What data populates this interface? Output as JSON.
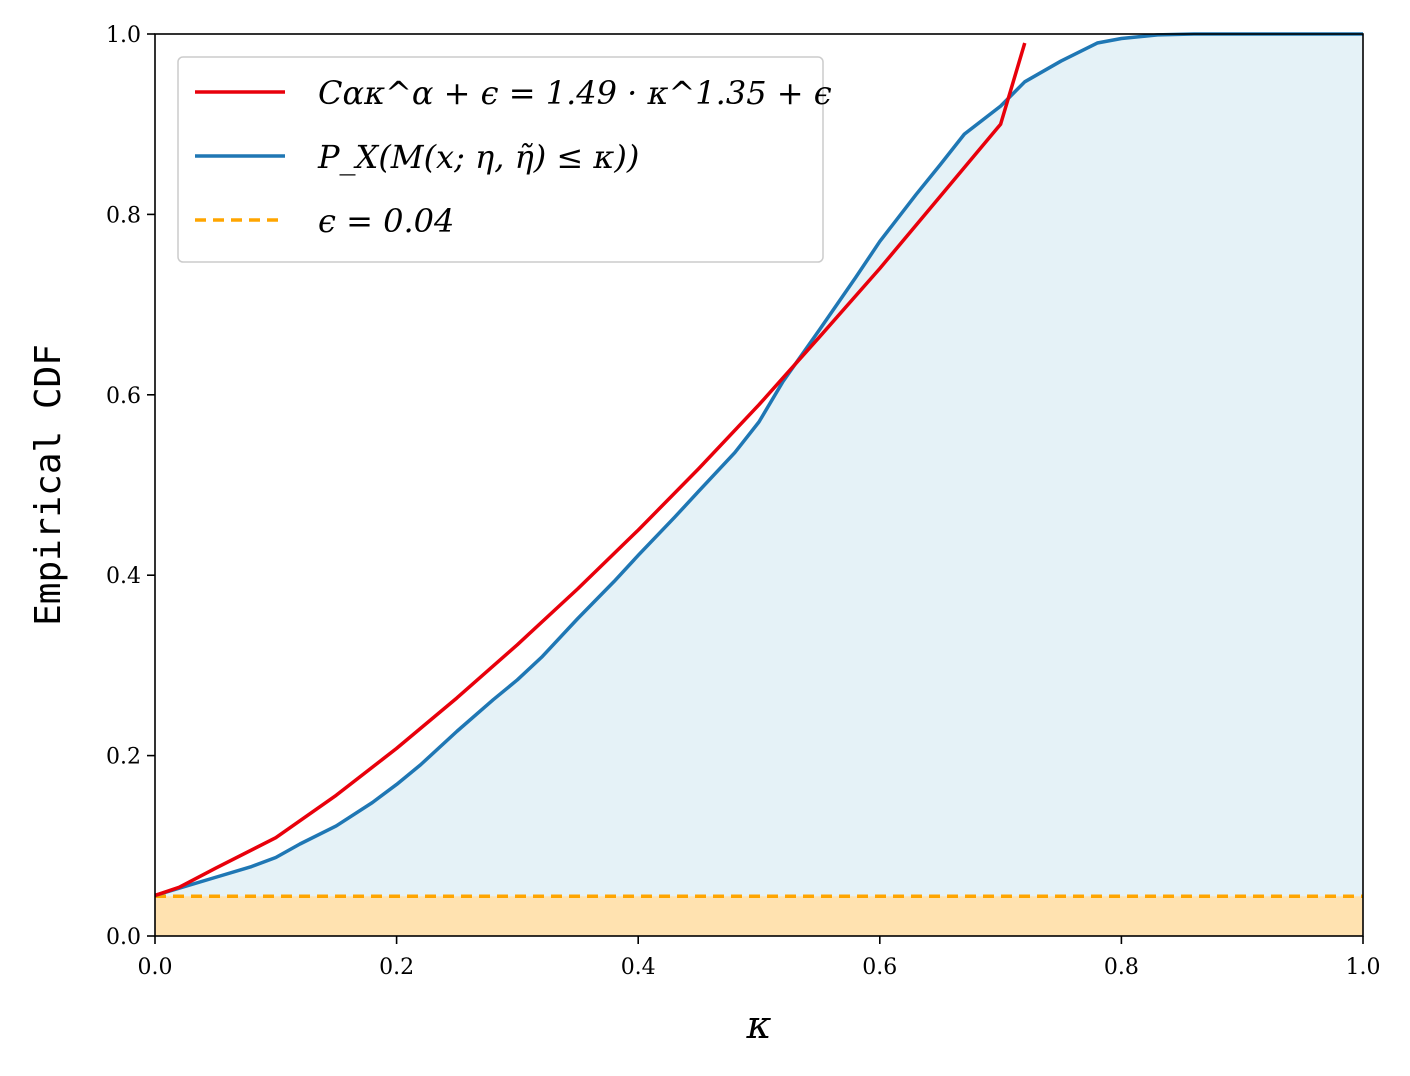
{
  "chart_data": {
    "type": "line",
    "xlabel": "κ",
    "ylabel": "Empirical CDF",
    "xlim": [
      0.0,
      1.0
    ],
    "ylim": [
      0.0,
      1.0
    ],
    "xticks": [
      "0.0",
      "0.2",
      "0.4",
      "0.6",
      "0.8",
      "1.0"
    ],
    "yticks": [
      "0.0",
      "0.2",
      "0.4",
      "0.6",
      "0.8",
      "1.0"
    ],
    "grid": false,
    "legend_position": "top-left",
    "fit_params": {
      "C": 1.49,
      "alpha": 1.35,
      "epsilon": 0.04
    },
    "series": [
      {
        "name": "Cακ^α + ϵ = 1.49 · κ^1.35 + ϵ",
        "color": "#e8000b",
        "style": "solid",
        "x": [
          0.0,
          0.02,
          0.05,
          0.1,
          0.15,
          0.2,
          0.25,
          0.3,
          0.35,
          0.4,
          0.45,
          0.5,
          0.55,
          0.6,
          0.65,
          0.7,
          0.72
        ],
        "y": [
          0.045,
          0.054,
          0.075,
          0.109,
          0.156,
          0.208,
          0.264,
          0.323,
          0.385,
          0.45,
          0.518,
          0.589,
          0.664,
          0.74,
          0.82,
          0.9,
          0.99
        ]
      },
      {
        "name": "P_X(M(x; η, η̃) ≤ κ))",
        "color": "#1f77b4",
        "style": "solid",
        "x": [
          0.0,
          0.02,
          0.05,
          0.08,
          0.1,
          0.12,
          0.15,
          0.18,
          0.2,
          0.22,
          0.25,
          0.28,
          0.3,
          0.32,
          0.35,
          0.38,
          0.4,
          0.43,
          0.45,
          0.48,
          0.5,
          0.52,
          0.55,
          0.58,
          0.6,
          0.63,
          0.65,
          0.67,
          0.7,
          0.72,
          0.75,
          0.78,
          0.8,
          0.83,
          0.86,
          0.9,
          1.0
        ],
        "y": [
          0.045,
          0.053,
          0.065,
          0.077,
          0.087,
          0.102,
          0.122,
          0.148,
          0.168,
          0.19,
          0.227,
          0.262,
          0.284,
          0.309,
          0.352,
          0.393,
          0.422,
          0.464,
          0.493,
          0.536,
          0.57,
          0.615,
          0.672,
          0.73,
          0.77,
          0.822,
          0.855,
          0.889,
          0.92,
          0.947,
          0.97,
          0.99,
          0.995,
          0.999,
          1.0,
          1.0,
          1.0
        ]
      },
      {
        "name": "ϵ = 0.04",
        "color": "#ffa500",
        "style": "dashed",
        "x": [
          0.0,
          1.0
        ],
        "y": [
          0.044,
          0.044
        ]
      }
    ],
    "fill": {
      "under_cdf_color": "#add8e6",
      "under_epsilon_color": "#ffe2b0"
    }
  },
  "legend": [
    {
      "text": "Cακ^α + ϵ = 1.49 · κ^1.35 + ϵ"
    },
    {
      "text": "P_X(M(x; η, η̃) ≤ κ))"
    },
    {
      "text": "ϵ = 0.04"
    }
  ]
}
